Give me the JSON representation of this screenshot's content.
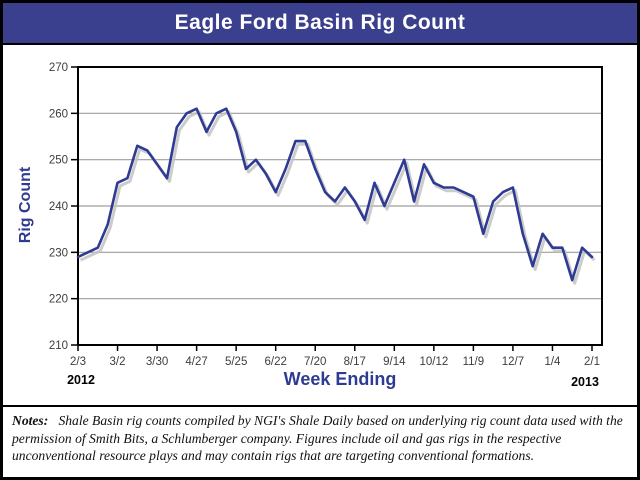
{
  "title": "Eagle Ford Basin Rig Count",
  "axes": {
    "y_title": "Rig Count",
    "x_title": "Week Ending",
    "year_left": "2012",
    "year_right": "2013"
  },
  "notes": {
    "label": "Notes:",
    "text": "Shale Basin rig counts compiled by NGI's Shale Daily based on underlying rig count data used with the permission of Smith Bits, a Schlumberger company.  Figures include oil and gas rigs in the respective unconventional resource plays and may contain rigs that are targeting conventional formations."
  },
  "colors": {
    "titlebar_bg": "#3a3f8e",
    "line": "#2e3b93",
    "shadow": "#c3c3c3",
    "grid": "#9e9e9e",
    "axis": "#000000",
    "tick_text": "#3d3d3d"
  },
  "chart_data": {
    "type": "line",
    "title": "Eagle Ford Basin Rig Count",
    "xlabel": "Week Ending",
    "ylabel": "Rig Count",
    "ylim": [
      210,
      270
    ],
    "ytick_interval": 10,
    "grid": "horizontal",
    "legend": "none",
    "x_start_label": "2/3/2012",
    "x_end_label": "2/1/2013",
    "x_frequency": "weekly",
    "xtick_labels": [
      "2/3",
      "3/2",
      "3/30",
      "4/27",
      "5/25",
      "6/22",
      "7/20",
      "8/17",
      "9/14",
      "10/12",
      "11/9",
      "12/7",
      "1/4",
      "2/1"
    ],
    "xtick_indices": [
      0,
      4,
      8,
      12,
      16,
      20,
      24,
      28,
      32,
      36,
      40,
      44,
      48,
      52
    ],
    "values": [
      229,
      230,
      231,
      236,
      245,
      246,
      253,
      252,
      249,
      246,
      257,
      260,
      261,
      256,
      260,
      261,
      256,
      248,
      250,
      247,
      243,
      248,
      254,
      254,
      248,
      243,
      241,
      244,
      241,
      237,
      245,
      240,
      245,
      250,
      241,
      249,
      245,
      244,
      244,
      243,
      242,
      234,
      241,
      243,
      244,
      234,
      227,
      234,
      231,
      231,
      224,
      231,
      229
    ]
  }
}
